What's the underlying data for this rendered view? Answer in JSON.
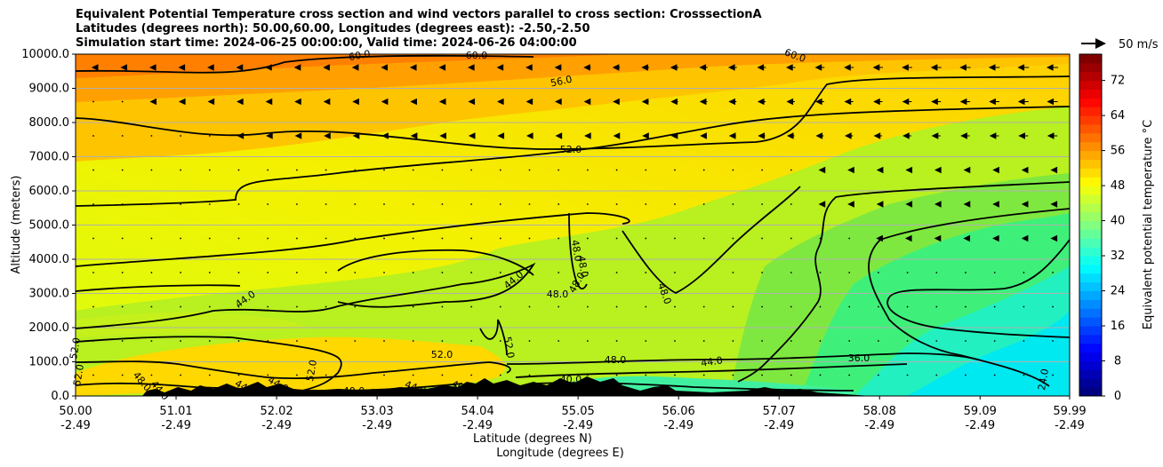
{
  "chart_data": {
    "type": "heatmap",
    "title_lines": [
      "Equivalent Potential Temperature cross section and wind vectors parallel to cross section: CrosssectionA",
      "Latitudes (degrees north): 50.00,60.00, Longitudes (degrees east): -2.50,-2.50",
      "Simulation start time: 2024-06-25 00:00:00, Valid time: 2024-06-26 04:00:00"
    ],
    "ylabel": "Altitude (meters)",
    "xlabel_lat": "Latitude (degrees N)",
    "xlabel_lon": "Longitude (degrees E)",
    "colorbar_label": "Equivalent potential temperature °C",
    "colorbar_ticks": [
      "0",
      "8",
      "16",
      "24",
      "32",
      "40",
      "48",
      "56",
      "64",
      "72"
    ],
    "colorbar_range": [
      0,
      78
    ],
    "quiver_key": "50 m/s",
    "x_ticks_lat": [
      "50.00",
      "51.01",
      "52.02",
      "53.03",
      "54.04",
      "55.05",
      "56.06",
      "57.07",
      "58.08",
      "59.09",
      "59.99"
    ],
    "x_ticks_lon": [
      "-2.49",
      "-2.49",
      "-2.49",
      "-2.49",
      "-2.49",
      "-2.49",
      "-2.49",
      "-2.49",
      "-2.49",
      "-2.49",
      "-2.49"
    ],
    "y_ticks": [
      "0.0",
      "1000.0",
      "2000.0",
      "3000.0",
      "4000.0",
      "5000.0",
      "6000.0",
      "7000.0",
      "8000.0",
      "9000.0",
      "10000.0"
    ],
    "xlim": [
      50.0,
      59.99
    ],
    "ylim": [
      0,
      10000
    ],
    "contour_labels": [
      "60.0",
      "60.0",
      "56.0",
      "60.0",
      "52.0",
      "48.0",
      "48.0",
      "48.0",
      "48.0",
      "44.0",
      "44.0",
      "48.0",
      "52.0",
      "52.0",
      "52.0",
      "48.0",
      "44.0",
      "40.0",
      "36.0",
      "24.0",
      "40.0",
      "40.0",
      "44.0",
      "40.0",
      "52.0",
      "48.0",
      "44.0",
      "44.0",
      "44.0",
      "52.0"
    ]
  }
}
